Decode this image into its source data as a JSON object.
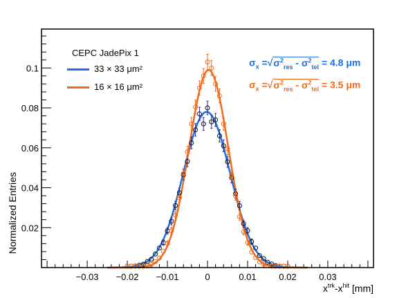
{
  "chart_data": {
    "type": "scatter",
    "xlabel": "x^trk-x^hit [mm]",
    "xlabel_parts": {
      "base1": "x",
      "sup1": "trk",
      "mid": "-x",
      "sup2": "hit",
      "unit": " [mm]"
    },
    "ylabel": "Normalized Entries",
    "xlim": [
      -0.0414,
      0.0414
    ],
    "ylim": [
      0,
      0.1195
    ],
    "x_ticks": [
      -0.03,
      -0.02,
      -0.01,
      0,
      0.01,
      0.02,
      0.03
    ],
    "x_tick_labels": [
      "−0.03",
      "−0.02",
      "−0.01",
      "0",
      "0.01",
      "0.02",
      "0.03"
    ],
    "y_ticks": [
      0.02,
      0.04,
      0.06,
      0.08,
      0.1
    ],
    "y_tick_labels": [
      "0.02",
      "0.04",
      "0.06",
      "0.08",
      "0.1"
    ],
    "grid": false,
    "legend": {
      "placement": "top-left",
      "title": "CEPC JadePix 1",
      "entries": [
        "33 × 33 μm²",
        "16 × 16 μm²"
      ]
    },
    "x": [
      -0.02,
      -0.019,
      -0.018,
      -0.017,
      -0.016,
      -0.015,
      -0.014,
      -0.013,
      -0.012,
      -0.011,
      -0.01,
      -0.009,
      -0.008,
      -0.007,
      -0.006,
      -0.005,
      -0.004,
      -0.003,
      -0.002,
      -0.001,
      0.0,
      0.001,
      0.002,
      0.003,
      0.004,
      0.005,
      0.006,
      0.007,
      0.008,
      0.009,
      0.01,
      0.011,
      0.012,
      0.013,
      0.014,
      0.015,
      0.016,
      0.017,
      0.018,
      0.019,
      0.02
    ],
    "series": [
      {
        "name": "33 × 33 μm²",
        "color": "#1f6fe0",
        "marker_color": "#111111",
        "errorbar_color": "#2a2a9a",
        "values": [
          0.0002,
          0.0004,
          0.0008,
          0.0012,
          0.0017,
          0.0031,
          0.0042,
          0.0068,
          0.0098,
          0.0125,
          0.0184,
          0.0232,
          0.0311,
          0.0375,
          0.0465,
          0.0532,
          0.0625,
          0.069,
          0.077,
          0.072,
          0.08,
          0.073,
          0.074,
          0.066,
          0.061,
          0.053,
          0.045,
          0.037,
          0.031,
          0.022,
          0.0185,
          0.013,
          0.0098,
          0.006,
          0.0045,
          0.0027,
          0.0018,
          0.001,
          0.0006,
          0.0003,
          0.0002
        ],
        "fit": {
          "type": "gaussian",
          "amplitude": 0.078,
          "mean": -0.0002,
          "sigma": 0.00584
        },
        "annotation": {
          "lhs": "σ",
          "lhs_sub": "x",
          "eq": " =",
          "t1": "σ",
          "t1_sup": "2",
          "t1_sub": "res",
          "minus": " - ",
          "t2": "σ",
          "t2_sup": "2",
          "t2_sub": "tel",
          "result": " = 4.8  μm"
        }
      },
      {
        "name": "16 × 16 μm²",
        "color": "#f26a1b",
        "marker_color": "#f26a1b",
        "errorbar_color": "#f26a1b",
        "values": [
          0.0,
          0.0001,
          0.0001,
          0.0002,
          0.0004,
          0.0008,
          0.0016,
          0.003,
          0.0048,
          0.0082,
          0.012,
          0.0185,
          0.0262,
          0.035,
          0.047,
          0.058,
          0.072,
          0.0805,
          0.09,
          0.096,
          0.103,
          0.1,
          0.092,
          0.086,
          0.072,
          0.0595,
          0.0465,
          0.036,
          0.0255,
          0.018,
          0.0125,
          0.0078,
          0.005,
          0.0028,
          0.0018,
          0.0009,
          0.0005,
          0.0002,
          0.0001,
          0.0001,
          0.0
        ],
        "fit": {
          "type": "gaussian",
          "amplitude": 0.099,
          "mean": 0.0003,
          "sigma": 0.0049
        },
        "annotation": {
          "lhs": "σ",
          "lhs_sub": "x",
          "eq": " =",
          "t1": "σ",
          "t1_sup": "2",
          "t1_sub": "res",
          "minus": " - ",
          "t2": "σ",
          "t2_sup": "2",
          "t2_sub": "tel",
          "result": " = 3.5  μm"
        }
      }
    ]
  }
}
